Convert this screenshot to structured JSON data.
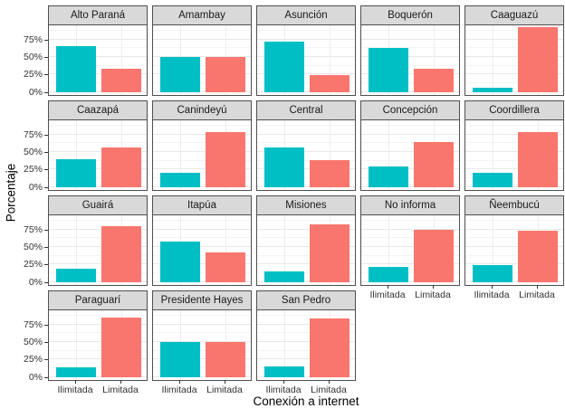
{
  "figure": {
    "x_axis_title": "Conexión a internet",
    "y_axis_title": "Porcentaje",
    "y_tick_labels": [
      "0%",
      "25%",
      "50%",
      "75%"
    ],
    "x_tick_labels": [
      "Ilimitada",
      "Limitada"
    ]
  },
  "colors": {
    "ilimitada_bar": "#00BFC4",
    "limitada_bar": "#F8766D",
    "strip_background": "#D9D9D9",
    "panel_border": "#4F4F4F",
    "grid_major": "#E8E8E8",
    "grid_minor": "#F4F4F4",
    "tick_text": "#333333"
  },
  "chart_data": {
    "type": "bar",
    "faceted": true,
    "facet_columns": 5,
    "categories": [
      "Ilimitada",
      "Limitada"
    ],
    "xlabel": "Conexión a internet",
    "ylabel": "Porcentaje",
    "y_ticks_percent": [
      0,
      25,
      50,
      75
    ],
    "ylim_percent": [
      -4,
      95
    ],
    "grid": "on",
    "legend_position": "none",
    "facets": [
      {
        "name": "Alto Paraná",
        "values": [
          65,
          34
        ]
      },
      {
        "name": "Amambay",
        "values": [
          50,
          50
        ]
      },
      {
        "name": "Asunción",
        "values": [
          72,
          25
        ]
      },
      {
        "name": "Boquerón",
        "values": [
          63,
          33
        ]
      },
      {
        "name": "Caaguazú",
        "values": [
          6,
          92
        ]
      },
      {
        "name": "Caazapá",
        "values": [
          40,
          57
        ]
      },
      {
        "name": "Canindeyú",
        "values": [
          20,
          78
        ]
      },
      {
        "name": "Central",
        "values": [
          57,
          39
        ]
      },
      {
        "name": "Concepción",
        "values": [
          30,
          64
        ]
      },
      {
        "name": "Coordillera",
        "values": [
          20,
          78
        ]
      },
      {
        "name": "Guairá",
        "values": [
          19,
          80
        ]
      },
      {
        "name": "Itapúa",
        "values": [
          58,
          42
        ]
      },
      {
        "name": "Misiones",
        "values": [
          16,
          82
        ]
      },
      {
        "name": "No informa",
        "values": [
          22,
          75
        ]
      },
      {
        "name": "Ñeembucú",
        "values": [
          25,
          73
        ]
      },
      {
        "name": "Paraguarí",
        "values": [
          14,
          85
        ]
      },
      {
        "name": "Presidente Hayes",
        "values": [
          50,
          50
        ]
      },
      {
        "name": "San Pedro",
        "values": [
          15,
          84
        ]
      }
    ]
  }
}
